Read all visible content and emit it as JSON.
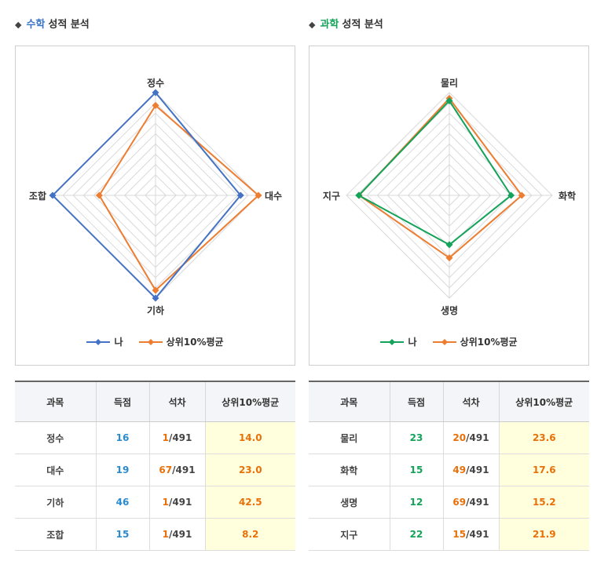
{
  "panels": [
    {
      "title_subject": "수학",
      "title_rest": "성적 분석",
      "subject_color": "#3a74c4",
      "legend": {
        "me": "나",
        "top": "상위10%평균"
      },
      "colors": {
        "me": "#4472c4",
        "top": "#ed7d31"
      },
      "table": {
        "headers": [
          "과목",
          "득점",
          "석차",
          "상위10%평균"
        ],
        "rows": [
          {
            "subject": "정수",
            "score": "16",
            "rank": "1",
            "total": "/491",
            "avg": "14.0"
          },
          {
            "subject": "대수",
            "score": "19",
            "rank": "67",
            "total": "/491",
            "avg": "23.0"
          },
          {
            "subject": "기하",
            "score": "46",
            "rank": "1",
            "total": "/491",
            "avg": "42.5"
          },
          {
            "subject": "조합",
            "score": "15",
            "rank": "1",
            "total": "/491",
            "avg": "8.2"
          }
        ]
      }
    },
    {
      "title_subject": "과학",
      "title_rest": "성적 분석",
      "subject_color": "#13a35a",
      "legend": {
        "me": "나",
        "top": "상위10%평균"
      },
      "colors": {
        "me": "#13a35a",
        "top": "#ed7d31"
      },
      "table": {
        "headers": [
          "과목",
          "득점",
          "석차",
          "상위10%평균"
        ],
        "rows": [
          {
            "subject": "물리",
            "score": "23",
            "rank": "20",
            "total": "/491",
            "avg": "23.6"
          },
          {
            "subject": "화학",
            "score": "15",
            "rank": "49",
            "total": "/491",
            "avg": "17.6"
          },
          {
            "subject": "생명",
            "score": "12",
            "rank": "69",
            "total": "/491",
            "avg": "15.2"
          },
          {
            "subject": "지구",
            "score": "22",
            "rank": "15",
            "total": "/491",
            "avg": "21.9"
          }
        ]
      }
    }
  ],
  "chart_data": [
    {
      "type": "radar",
      "categories": [
        "정수",
        "대수",
        "기하",
        "조합"
      ],
      "series": [
        {
          "name": "나",
          "values": [
            16,
            19,
            46,
            15
          ]
        },
        {
          "name": "상위10%평균",
          "values": [
            14.0,
            23.0,
            42.5,
            8.2
          ]
        }
      ],
      "axis_max": [
        16,
        23,
        46,
        15
      ],
      "grid_levels": 10,
      "legend_position": "bottom"
    },
    {
      "type": "radar",
      "categories": [
        "물리",
        "화학",
        "생명",
        "지구"
      ],
      "series": [
        {
          "name": "나",
          "values": [
            23,
            15,
            12,
            22
          ]
        },
        {
          "name": "상위10%평균",
          "values": [
            23.6,
            17.6,
            15.2,
            21.9
          ]
        }
      ],
      "axis_max": [
        25,
        25,
        25,
        25
      ],
      "grid_levels": 10,
      "legend_position": "bottom"
    }
  ]
}
